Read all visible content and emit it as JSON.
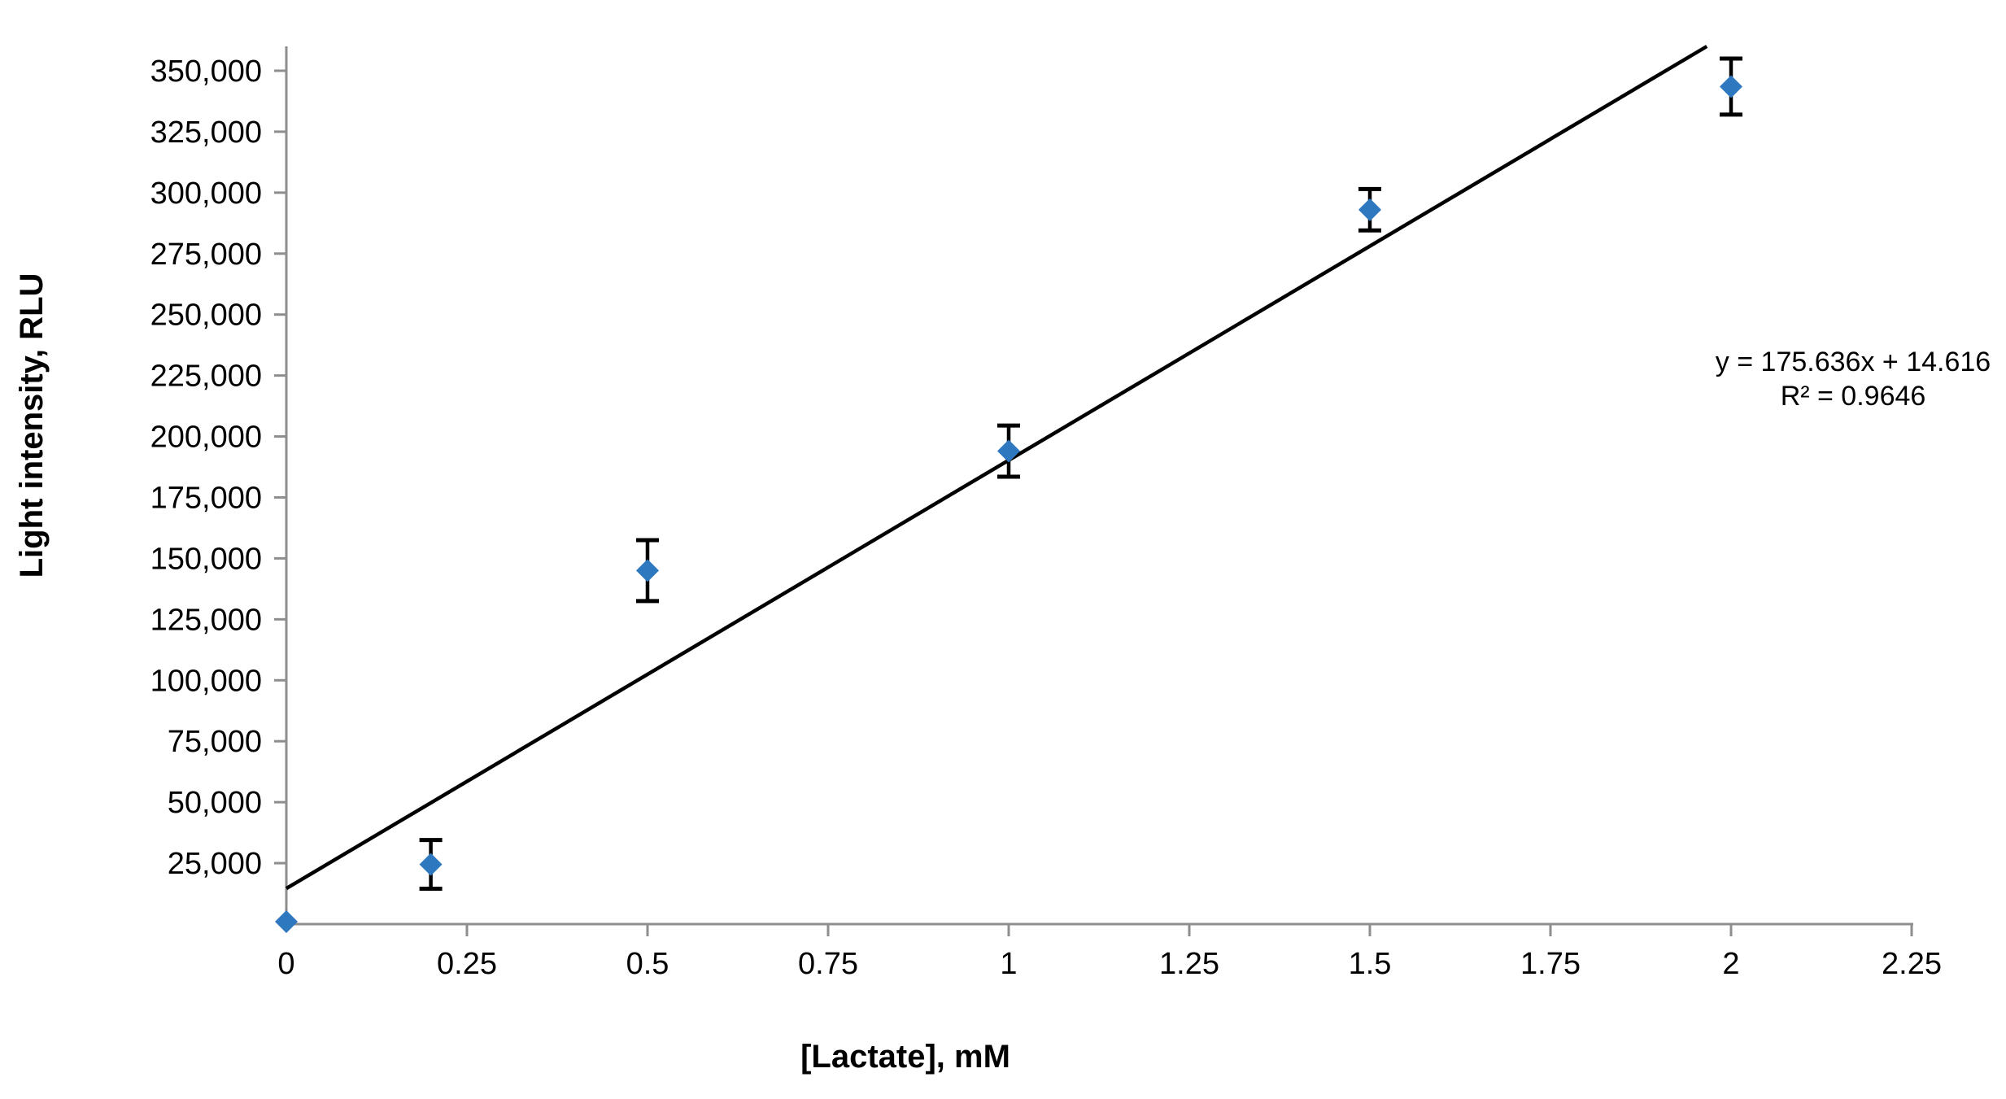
{
  "page": {
    "background": "#ffffff"
  },
  "chart_data": {
    "type": "scatter",
    "title": "",
    "xlabel": "[Lactate], mM",
    "ylabel": "Light intensity, RLU",
    "xlim": [
      0,
      2.25
    ],
    "ylim": [
      0,
      360000
    ],
    "grid": false,
    "legend": false,
    "x_ticks": [
      0,
      0.25,
      0.5,
      0.75,
      1,
      1.25,
      1.5,
      1.75,
      2,
      2.25
    ],
    "x_tick_labels": [
      "0",
      "0.25",
      "0.5",
      "0.75",
      "1",
      "1.25",
      "1.5",
      "1.75",
      "2",
      "2.25"
    ],
    "y_ticks": [
      25000,
      50000,
      75000,
      100000,
      125000,
      150000,
      175000,
      200000,
      225000,
      250000,
      275000,
      300000,
      325000,
      350000
    ],
    "y_tick_labels": [
      "25,000",
      "50,000",
      "75,000",
      "100,000",
      "125,000",
      "150,000",
      "175,000",
      "200,000",
      "225,000",
      "250,000",
      "275,000",
      "300,000",
      "325,000",
      "350,000"
    ],
    "series": [
      {
        "marker": "diamond",
        "color": "#2D78BE",
        "marker_size": 28,
        "points": [
          {
            "x": 0,
            "y": 1000,
            "y_err": 0
          },
          {
            "x": 0.2,
            "y": 24500,
            "y_err": 10000
          },
          {
            "x": 0.5,
            "y": 145000,
            "y_err": 12500
          },
          {
            "x": 1,
            "y": 194000,
            "y_err": 10500
          },
          {
            "x": 1.5,
            "y": 293000,
            "y_err": 8500
          },
          {
            "x": 2,
            "y": 343500,
            "y_err": 11500
          }
        ]
      }
    ],
    "trendline": {
      "slope": 175636,
      "intercept": 14616,
      "equation_text": "y = 175.636x + 14.616",
      "r_squared_text": "R² = 0.9646",
      "color": "#000000"
    },
    "style": {
      "axis_color": "#8E8E8E",
      "error_bar_color": "#000000",
      "text_color": "#000000"
    }
  }
}
